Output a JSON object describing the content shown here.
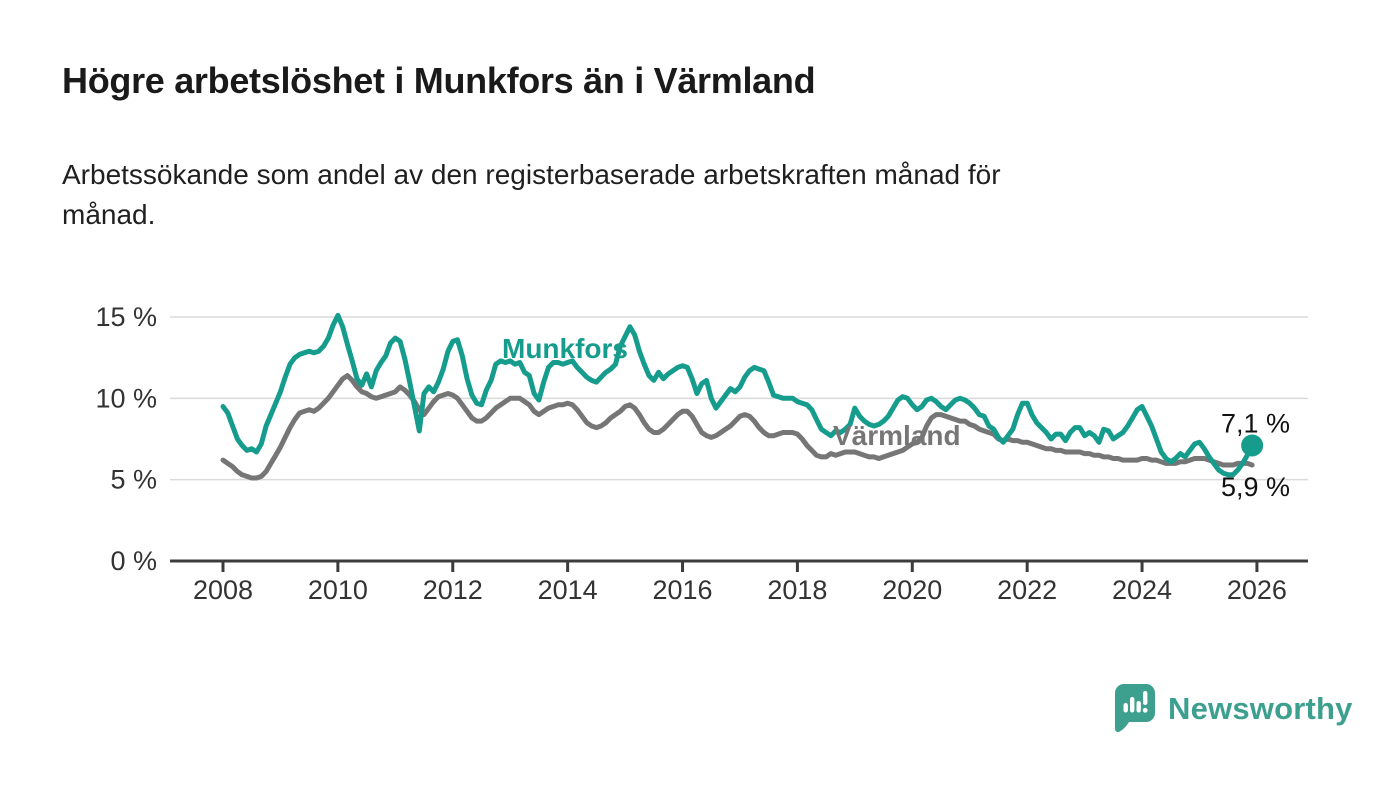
{
  "header": {
    "title": "Högre arbetslöshet i Munkfors än i Värmland",
    "subtitle": "Arbetssökande som andel av den registerbaserade arbetskraften månad för månad."
  },
  "chart_data": {
    "type": "line",
    "title": "Högre arbetslöshet i Munkfors än i Värmland",
    "subtitle": "Arbetssökande som andel av den registerbaserade arbetskraften månad för månad.",
    "frequency": "monthly",
    "x_start": {
      "year": 2008,
      "month": 1
    },
    "x_end": {
      "year": 2025,
      "month": 12
    },
    "x_axis": {
      "tick_years": [
        2008,
        2010,
        2012,
        2014,
        2016,
        2018,
        2020,
        2022,
        2024,
        2026
      ]
    },
    "y_axis": {
      "unit": "%",
      "tick_values": [
        0,
        5,
        10,
        15
      ],
      "tick_labels": [
        "0 %",
        "5 %",
        "10 %",
        "15 %"
      ],
      "ylim": [
        0,
        16
      ]
    },
    "grid": "horizontal",
    "legend": "inline-labels",
    "series": [
      {
        "name": "Munkfors",
        "color": "#169c8d",
        "end_value": 7.1,
        "end_label": "7,1 %",
        "values": [
          9.5,
          9.1,
          8.3,
          7.5,
          7.1,
          6.8,
          6.9,
          6.7,
          7.2,
          8.3,
          9.0,
          9.7,
          10.4,
          11.3,
          12.1,
          12.5,
          12.7,
          12.8,
          12.9,
          12.8,
          12.9,
          13.2,
          13.7,
          14.5,
          15.1,
          14.4,
          13.3,
          12.3,
          11.2,
          10.8,
          11.5,
          10.7,
          11.7,
          12.2,
          12.6,
          13.4,
          13.7,
          13.5,
          12.4,
          11.0,
          9.5,
          8.0,
          10.3,
          10.7,
          10.4,
          11.0,
          11.8,
          12.9,
          13.5,
          13.6,
          12.6,
          11.2,
          10.2,
          9.7,
          9.6,
          10.5,
          11.1,
          12.1,
          12.3,
          12.2,
          12.3,
          12.1,
          12.2,
          11.6,
          11.4,
          10.3,
          9.9,
          11.0,
          11.9,
          12.2,
          12.2,
          12.1,
          12.2,
          12.3,
          11.9,
          11.6,
          11.3,
          11.1,
          11.0,
          11.3,
          11.6,
          11.8,
          12.1,
          13.2,
          13.8,
          14.4,
          13.9,
          12.9,
          12.1,
          11.4,
          11.1,
          11.6,
          11.2,
          11.5,
          11.7,
          11.9,
          12.0,
          11.9,
          11.2,
          10.3,
          10.9,
          11.1,
          10.0,
          9.4,
          9.8,
          10.2,
          10.6,
          10.4,
          10.7,
          11.3,
          11.7,
          11.9,
          11.8,
          11.7,
          11.0,
          10.2,
          10.1,
          10.0,
          10.0,
          10.0,
          9.8,
          9.7,
          9.6,
          9.3,
          8.7,
          8.1,
          7.9,
          7.7,
          8.0,
          7.9,
          8.1,
          8.4,
          9.4,
          8.9,
          8.6,
          8.4,
          8.3,
          8.4,
          8.6,
          8.9,
          9.4,
          9.9,
          10.1,
          10.0,
          9.6,
          9.3,
          9.5,
          9.9,
          10.0,
          9.8,
          9.5,
          9.3,
          9.6,
          9.9,
          10.0,
          9.9,
          9.7,
          9.4,
          9.0,
          8.9,
          8.3,
          8.1,
          7.6,
          7.3,
          7.7,
          8.1,
          9.0,
          9.7,
          9.7,
          9.0,
          8.5,
          8.2,
          7.9,
          7.5,
          7.8,
          7.8,
          7.4,
          7.9,
          8.2,
          8.2,
          7.7,
          7.9,
          7.7,
          7.3,
          8.1,
          8.0,
          7.5,
          7.7,
          7.9,
          8.3,
          8.8,
          9.3,
          9.5,
          8.9,
          8.3,
          7.5,
          6.7,
          6.3,
          6.1,
          6.3,
          6.6,
          6.4,
          6.8,
          7.2,
          7.3,
          6.9,
          6.4,
          6.0,
          5.6,
          5.4,
          5.3,
          5.3,
          5.6,
          6.0,
          6.5,
          7.1
        ]
      },
      {
        "name": "Värmland",
        "color": "#767676",
        "end_value": 5.9,
        "end_label": "5,9 %",
        "values": [
          6.2,
          6.0,
          5.8,
          5.5,
          5.3,
          5.2,
          5.1,
          5.1,
          5.2,
          5.5,
          6.0,
          6.5,
          7.0,
          7.6,
          8.2,
          8.7,
          9.1,
          9.2,
          9.3,
          9.2,
          9.4,
          9.7,
          10.0,
          10.4,
          10.8,
          11.2,
          11.4,
          11.1,
          10.7,
          10.4,
          10.3,
          10.1,
          10.0,
          10.1,
          10.2,
          10.3,
          10.4,
          10.7,
          10.5,
          10.2,
          9.8,
          9.3,
          9.0,
          9.4,
          9.8,
          10.1,
          10.2,
          10.3,
          10.2,
          10.0,
          9.6,
          9.2,
          8.8,
          8.6,
          8.6,
          8.8,
          9.1,
          9.4,
          9.6,
          9.8,
          10.0,
          10.0,
          10.0,
          9.8,
          9.6,
          9.2,
          9.0,
          9.2,
          9.4,
          9.5,
          9.6,
          9.6,
          9.7,
          9.6,
          9.3,
          8.9,
          8.5,
          8.3,
          8.2,
          8.3,
          8.5,
          8.8,
          9.0,
          9.2,
          9.5,
          9.6,
          9.4,
          9.0,
          8.5,
          8.1,
          7.9,
          7.9,
          8.1,
          8.4,
          8.7,
          9.0,
          9.2,
          9.2,
          8.9,
          8.4,
          7.9,
          7.7,
          7.6,
          7.7,
          7.9,
          8.1,
          8.3,
          8.6,
          8.9,
          9.0,
          8.9,
          8.6,
          8.2,
          7.9,
          7.7,
          7.7,
          7.8,
          7.9,
          7.9,
          7.9,
          7.8,
          7.5,
          7.1,
          6.8,
          6.5,
          6.4,
          6.4,
          6.6,
          6.5,
          6.6,
          6.7,
          6.7,
          6.7,
          6.6,
          6.5,
          6.4,
          6.4,
          6.3,
          6.4,
          6.5,
          6.6,
          6.7,
          6.8,
          7.0,
          7.2,
          7.3,
          7.6,
          8.3,
          8.8,
          9.0,
          9.0,
          8.9,
          8.8,
          8.7,
          8.6,
          8.6,
          8.4,
          8.3,
          8.1,
          8.0,
          7.9,
          7.8,
          7.5,
          7.4,
          7.5,
          7.4,
          7.4,
          7.3,
          7.3,
          7.2,
          7.1,
          7.0,
          6.9,
          6.9,
          6.8,
          6.8,
          6.7,
          6.7,
          6.7,
          6.7,
          6.6,
          6.6,
          6.5,
          6.5,
          6.4,
          6.4,
          6.3,
          6.3,
          6.2,
          6.2,
          6.2,
          6.2,
          6.3,
          6.3,
          6.2,
          6.2,
          6.1,
          6.0,
          6.0,
          6.0,
          6.1,
          6.1,
          6.2,
          6.3,
          6.3,
          6.3,
          6.2,
          6.1,
          6.0,
          5.9,
          5.9,
          5.9,
          6.0,
          6.0,
          6.0,
          5.9
        ]
      }
    ],
    "colors": {
      "axis": "#3c3c3c",
      "gridline": "#dadada",
      "tick_text": "#333333"
    }
  },
  "footer": {
    "brand": "Newsworthy",
    "brand_color": "#3da08f"
  }
}
